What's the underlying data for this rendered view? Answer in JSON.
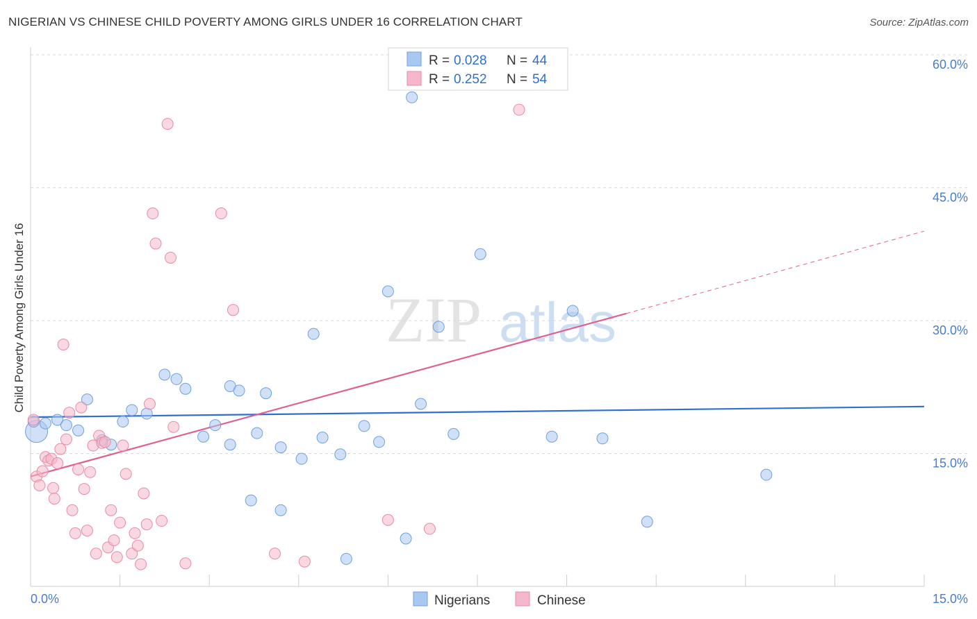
{
  "title": "NIGERIAN VS CHINESE CHILD POVERTY AMONG GIRLS UNDER 16 CORRELATION CHART",
  "source": "Source: ZipAtlas.com",
  "watermark": {
    "zip": "ZIP",
    "atlas": "atlas"
  },
  "chart_data": {
    "type": "scatter",
    "ylabel": "Child Poverty Among Girls Under 16",
    "xlim": [
      0,
      15
    ],
    "ylim": [
      0,
      60
    ],
    "x_ticks": [
      "0.0%",
      "15.0%"
    ],
    "y_ticks": [
      {
        "value": 15,
        "label": "15.0%"
      },
      {
        "value": 30,
        "label": "30.0%"
      },
      {
        "value": 45,
        "label": "45.0%"
      },
      {
        "value": 60,
        "label": "60.0%"
      }
    ],
    "grid": true,
    "legend_top": [
      {
        "r_label": "R =",
        "r_value": "0.028",
        "n_label": "N =",
        "n_value": "44",
        "color": "#a9c8f0"
      },
      {
        "r_label": "R =",
        "r_value": "0.252",
        "n_label": "N =",
        "n_value": "54",
        "color": "#f5b8cb"
      }
    ],
    "series": [
      {
        "name": "Nigerians",
        "color": "#a9c8f0",
        "stroke": "#6f9fe0",
        "trend": {
          "color": "#2f6fd0",
          "x": [
            0,
            15
          ],
          "y": [
            19.1,
            20.3
          ]
        },
        "points": [
          [
            0.1,
            17.5
          ],
          [
            0.25,
            18.4
          ],
          [
            0.45,
            18.8
          ],
          [
            0.6,
            18.2
          ],
          [
            0.8,
            17.6
          ],
          [
            0.95,
            21.1
          ],
          [
            1.2,
            16.5
          ],
          [
            1.35,
            16.0
          ],
          [
            1.55,
            18.6
          ],
          [
            1.7,
            19.9
          ],
          [
            1.95,
            19.5
          ],
          [
            2.25,
            23.9
          ],
          [
            2.45,
            23.4
          ],
          [
            2.6,
            22.3
          ],
          [
            2.9,
            16.9
          ],
          [
            3.1,
            18.2
          ],
          [
            3.35,
            22.6
          ],
          [
            3.35,
            16.0
          ],
          [
            3.5,
            22.1
          ],
          [
            3.8,
            17.3
          ],
          [
            3.95,
            21.8
          ],
          [
            4.2,
            8.6
          ],
          [
            4.2,
            15.7
          ],
          [
            4.55,
            14.4
          ],
          [
            4.75,
            28.5
          ],
          [
            4.9,
            16.8
          ],
          [
            5.2,
            14.9
          ],
          [
            5.3,
            3.1
          ],
          [
            5.6,
            18.1
          ],
          [
            5.85,
            16.3
          ],
          [
            6.0,
            33.3
          ],
          [
            6.3,
            5.4
          ],
          [
            6.4,
            55.2
          ],
          [
            6.55,
            20.6
          ],
          [
            6.85,
            29.3
          ],
          [
            7.1,
            17.2
          ],
          [
            7.55,
            37.5
          ],
          [
            8.75,
            16.9
          ],
          [
            9.1,
            31.1
          ],
          [
            9.6,
            16.7
          ],
          [
            10.35,
            7.3
          ],
          [
            12.35,
            12.6
          ],
          [
            3.7,
            9.7
          ],
          [
            0.05,
            18.6
          ]
        ]
      },
      {
        "name": "Chinese",
        "color": "#f5b8cb",
        "stroke": "#e88aa8",
        "trend": {
          "color": "#e06090",
          "x": [
            0,
            10.0
          ],
          "y": [
            12.4,
            30.8
          ],
          "dash_x": [
            10.0,
            15
          ],
          "dash_y": [
            30.8,
            40.1
          ]
        },
        "points": [
          [
            0.05,
            18.8
          ],
          [
            0.1,
            12.4
          ],
          [
            0.15,
            11.4
          ],
          [
            0.2,
            13.0
          ],
          [
            0.25,
            14.6
          ],
          [
            0.3,
            14.2
          ],
          [
            0.35,
            14.4
          ],
          [
            0.38,
            11.1
          ],
          [
            0.4,
            9.9
          ],
          [
            0.45,
            13.9
          ],
          [
            0.5,
            15.5
          ],
          [
            0.55,
            27.3
          ],
          [
            0.6,
            16.6
          ],
          [
            0.65,
            19.6
          ],
          [
            0.7,
            8.6
          ],
          [
            0.75,
            6.0
          ],
          [
            0.8,
            13.2
          ],
          [
            0.85,
            20.2
          ],
          [
            0.9,
            11.0
          ],
          [
            0.95,
            6.3
          ],
          [
            1.0,
            12.9
          ],
          [
            1.05,
            15.9
          ],
          [
            1.1,
            3.7
          ],
          [
            1.15,
            17.0
          ],
          [
            1.2,
            16.2
          ],
          [
            1.25,
            16.3
          ],
          [
            1.3,
            4.4
          ],
          [
            1.35,
            8.6
          ],
          [
            1.4,
            5.2
          ],
          [
            1.45,
            3.3
          ],
          [
            1.5,
            7.2
          ],
          [
            1.55,
            15.9
          ],
          [
            1.6,
            12.7
          ],
          [
            1.7,
            3.7
          ],
          [
            1.75,
            6.0
          ],
          [
            1.8,
            4.6
          ],
          [
            1.85,
            2.5
          ],
          [
            1.9,
            10.5
          ],
          [
            1.95,
            7.0
          ],
          [
            2.0,
            20.6
          ],
          [
            2.05,
            42.1
          ],
          [
            2.1,
            38.7
          ],
          [
            2.2,
            7.4
          ],
          [
            2.3,
            52.2
          ],
          [
            2.35,
            37.1
          ],
          [
            2.4,
            18.0
          ],
          [
            2.6,
            2.6
          ],
          [
            3.2,
            42.1
          ],
          [
            3.4,
            31.2
          ],
          [
            4.1,
            3.7
          ],
          [
            4.6,
            2.8
          ],
          [
            6.0,
            7.5
          ],
          [
            6.7,
            6.5
          ],
          [
            8.2,
            53.8
          ]
        ]
      }
    ],
    "legend_bottom": [
      {
        "label": "Nigerians",
        "color": "#a9c8f0"
      },
      {
        "label": "Chinese",
        "color": "#f5b8cb"
      }
    ]
  }
}
